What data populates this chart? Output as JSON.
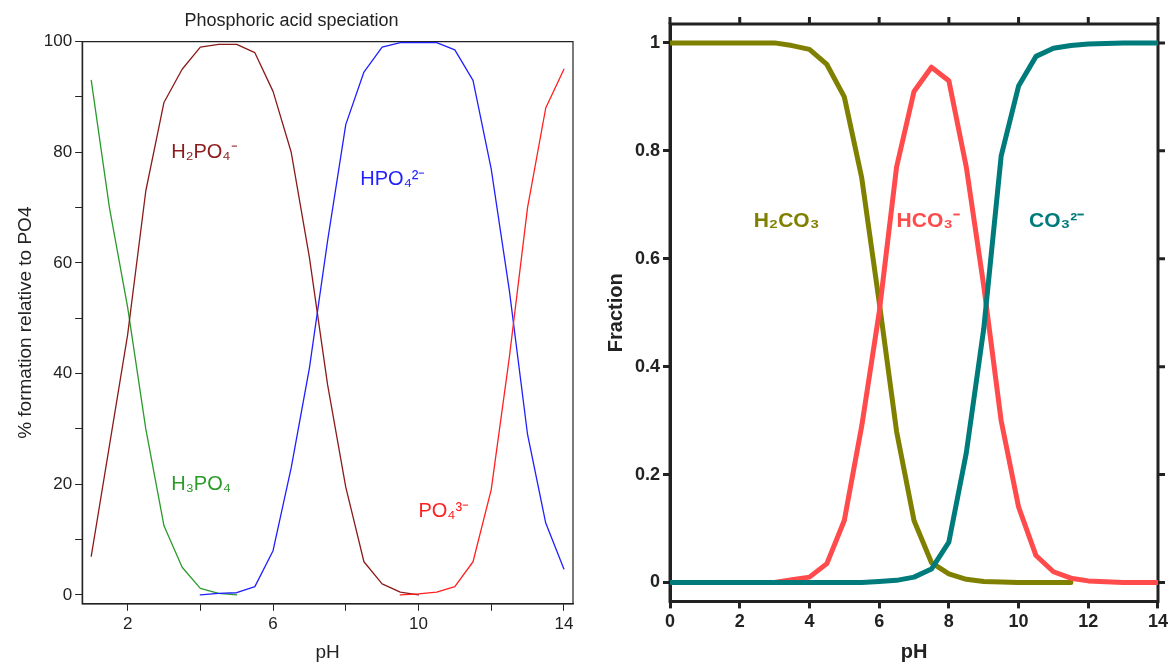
{
  "chart_data": [
    {
      "type": "line",
      "title": "Phosphoric acid speciation",
      "xlabel": "pH",
      "ylabel": "% formation relative to PO4",
      "legend": false,
      "grid": false,
      "marker": "none",
      "line_style": "solid",
      "x": [
        1,
        1.5,
        2,
        2.5,
        3,
        3.5,
        4,
        4.5,
        5,
        5.5,
        6,
        6.5,
        7,
        7.5,
        8,
        8.5,
        9,
        9.5,
        10,
        10.5,
        11,
        11.5,
        12,
        12.5,
        13,
        13.5,
        14
      ],
      "xlim": [
        0.75,
        14.25
      ],
      "xticks": [
        2,
        {
          "value": 4,
          "label": null
        },
        6,
        {
          "value": 8,
          "label": null
        },
        10,
        {
          "value": 12,
          "label": null
        },
        14
      ],
      "ylim": [
        -1.6,
        100
      ],
      "yticks": [
        0,
        {
          "value": 10,
          "label": null
        },
        20,
        {
          "value": 30,
          "label": null
        },
        40,
        {
          "value": 50,
          "label": null
        },
        60,
        {
          "value": 70,
          "label": null
        },
        80,
        {
          "value": 90,
          "label": null
        },
        100
      ],
      "series": [
        {
          "name": "H₃PO₄",
          "color": "#2a9a2a",
          "values": [
            93,
            70,
            52,
            30,
            12.5,
            5,
            1.2,
            0.3,
            0,
            null,
            null,
            null,
            null,
            null,
            null,
            null,
            null,
            null,
            null,
            null,
            null,
            null,
            null,
            null,
            null,
            null,
            null
          ]
        },
        {
          "name": "H₂PO₄⁻",
          "color": "#8b1a1a",
          "values": [
            7,
            27,
            47,
            73,
            89,
            95,
            99,
            99.5,
            99.5,
            98,
            91,
            80,
            61,
            38,
            19.5,
            6,
            2,
            0.5,
            0,
            null,
            null,
            null,
            null,
            null,
            null,
            null,
            null
          ]
        },
        {
          "name": "HPO₄²⁻",
          "color": "#1f1fff",
          "values": [
            null,
            null,
            null,
            null,
            null,
            null,
            0,
            0.3,
            0.4,
            1.5,
            8,
            23,
            41,
            64,
            85,
            94.5,
            99,
            99.8,
            99.8,
            99.8,
            98.5,
            93,
            77,
            55,
            29,
            13,
            4.7
          ]
        },
        {
          "name": "PO₄³⁻",
          "color": "#ff2020",
          "values": [
            null,
            null,
            null,
            null,
            null,
            null,
            null,
            null,
            null,
            null,
            null,
            null,
            null,
            null,
            null,
            null,
            null,
            0,
            0.2,
            0.5,
            1.5,
            6,
            19,
            43,
            70,
            88,
            95
          ]
        }
      ]
    },
    {
      "type": "line",
      "xlabel": "pH",
      "ylabel": "Fraction",
      "legend": false,
      "grid": false,
      "marker": "none",
      "line_style": "solid",
      "x": [
        0,
        1,
        2,
        3,
        3.5,
        4,
        4.5,
        5,
        5.5,
        6,
        6.5,
        7,
        7.5,
        8,
        8.5,
        9,
        9.5,
        10,
        10.5,
        11,
        11.5,
        12,
        13,
        14
      ],
      "xlim": [
        0,
        14
      ],
      "xticks": [
        0,
        2,
        4,
        6,
        8,
        10,
        12,
        14
      ],
      "ylim": [
        -0.035,
        1.035
      ],
      "yticks": [
        0,
        0.2,
        0.4,
        0.6,
        0.8,
        1
      ],
      "series": [
        {
          "name": "H₂CO₃",
          "color": "#808000",
          "values": [
            1,
            1,
            1,
            1,
            0.995,
            0.988,
            0.96,
            0.9,
            0.75,
            0.52,
            0.28,
            0.115,
            0.037,
            0.016,
            0.006,
            0.002,
            0.001,
            0,
            0,
            0,
            0,
            null,
            null,
            null
          ]
        },
        {
          "name": "HCO₃⁻",
          "color": "#ff4b4b",
          "values": [
            null,
            null,
            null,
            0,
            0.005,
            0.01,
            0.035,
            0.115,
            0.29,
            0.5,
            0.77,
            0.91,
            0.955,
            0.93,
            0.77,
            0.55,
            0.3,
            0.14,
            0.05,
            0.02,
            0.008,
            0.003,
            0,
            0
          ]
        },
        {
          "name": "CO₃²⁻",
          "color": "#007b7b",
          "values": [
            0,
            0,
            0,
            0,
            0,
            0,
            0,
            0,
            0,
            0.002,
            0.004,
            0.01,
            0.025,
            0.075,
            0.24,
            0.47,
            0.79,
            0.92,
            0.975,
            0.99,
            0.995,
            0.998,
            1,
            1
          ]
        }
      ]
    }
  ]
}
